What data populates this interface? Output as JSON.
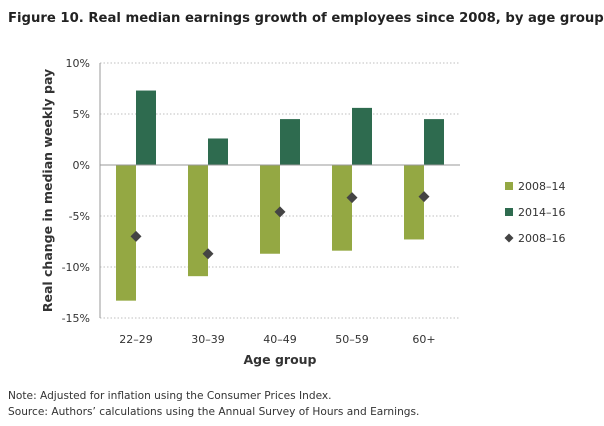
{
  "title": "Figure 10. Real median earnings growth of employees since 2008, by age group",
  "notes": [
    "Note: Adjusted for inflation using the Consumer Prices Index.",
    "Source: Authors’ calculations using the Annual Survey of Hours and Earnings."
  ],
  "chart_data": {
    "type": "bar",
    "xlabel": "Age group",
    "ylabel": "Real change in median weekly pay",
    "categories": [
      "22–29",
      "30–39",
      "40–49",
      "50–59",
      "60+"
    ],
    "ylim": [
      -15,
      10
    ],
    "yticks": [
      10,
      5,
      0,
      -5,
      -10,
      -15
    ],
    "ytick_labels": [
      "10%",
      "5%",
      "0%",
      "-5%",
      "-10%",
      "-15%"
    ],
    "grid": "horizontal dotted",
    "legend_position": "right",
    "series": [
      {
        "name": "2008–14",
        "kind": "bar",
        "color": "#94a843",
        "values": [
          -13.3,
          -10.9,
          -8.7,
          -8.4,
          -7.3
        ]
      },
      {
        "name": "2014–16",
        "kind": "bar",
        "color": "#2e6b4f",
        "values": [
          7.3,
          2.6,
          4.5,
          5.6,
          4.5
        ]
      },
      {
        "name": "2008–16",
        "kind": "marker",
        "marker": "diamond",
        "color": "#444444",
        "values": [
          -7.0,
          -8.7,
          -4.6,
          -3.2,
          -3.1
        ]
      }
    ]
  }
}
